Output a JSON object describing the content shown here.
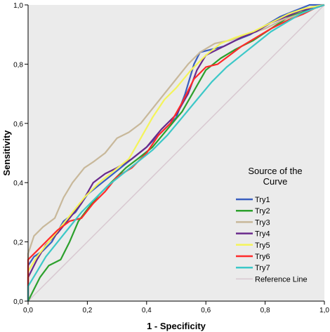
{
  "chart_data": {
    "type": "line",
    "title": "",
    "xlabel": "1 - Specificity",
    "ylabel": "Sensitivity",
    "xlim": [
      0,
      1
    ],
    "ylim": [
      0,
      1
    ],
    "x_ticks": [
      "0,0",
      "0,2",
      "0,4",
      "0,6",
      "0,8",
      "1,0"
    ],
    "y_ticks": [
      "0,0",
      "0,2",
      "0,4",
      "0,6",
      "0,8",
      "1,0"
    ],
    "grid": false,
    "background": "#ebebeb",
    "legend": {
      "title": "Source of the Curve",
      "title_lines": [
        "Source of the",
        "Curve"
      ],
      "placement": "bottom-right"
    },
    "series": [
      {
        "name": "Try1",
        "color": "#3a5fbf",
        "points": [
          [
            0,
            0
          ],
          [
            0,
            0.12
          ],
          [
            0.02,
            0.15
          ],
          [
            0.05,
            0.17
          ],
          [
            0.08,
            0.2
          ],
          [
            0.12,
            0.27
          ],
          [
            0.16,
            0.3
          ],
          [
            0.2,
            0.36
          ],
          [
            0.25,
            0.4
          ],
          [
            0.3,
            0.44
          ],
          [
            0.35,
            0.48
          ],
          [
            0.4,
            0.52
          ],
          [
            0.45,
            0.57
          ],
          [
            0.5,
            0.62
          ],
          [
            0.53,
            0.7
          ],
          [
            0.56,
            0.8
          ],
          [
            0.58,
            0.84
          ],
          [
            0.62,
            0.85
          ],
          [
            0.66,
            0.86
          ],
          [
            0.7,
            0.88
          ],
          [
            0.75,
            0.9
          ],
          [
            0.8,
            0.93
          ],
          [
            0.85,
            0.96
          ],
          [
            0.9,
            0.98
          ],
          [
            0.95,
            1
          ],
          [
            1,
            1
          ]
        ]
      },
      {
        "name": "Try2",
        "color": "#2ca02c",
        "points": [
          [
            0,
            0
          ],
          [
            0.02,
            0.04
          ],
          [
            0.04,
            0.08
          ],
          [
            0.07,
            0.12
          ],
          [
            0.11,
            0.14
          ],
          [
            0.14,
            0.2
          ],
          [
            0.17,
            0.27
          ],
          [
            0.2,
            0.31
          ],
          [
            0.24,
            0.36
          ],
          [
            0.28,
            0.4
          ],
          [
            0.33,
            0.45
          ],
          [
            0.37,
            0.48
          ],
          [
            0.42,
            0.52
          ],
          [
            0.47,
            0.58
          ],
          [
            0.52,
            0.64
          ],
          [
            0.56,
            0.71
          ],
          [
            0.6,
            0.78
          ],
          [
            0.65,
            0.82
          ],
          [
            0.7,
            0.85
          ],
          [
            0.76,
            0.88
          ],
          [
            0.82,
            0.92
          ],
          [
            0.88,
            0.96
          ],
          [
            0.94,
            0.98
          ],
          [
            1,
            1
          ]
        ]
      },
      {
        "name": "Try3",
        "color": "#c8b89a",
        "points": [
          [
            0,
            0
          ],
          [
            0,
            0.16
          ],
          [
            0.02,
            0.22
          ],
          [
            0.05,
            0.25
          ],
          [
            0.09,
            0.28
          ],
          [
            0.12,
            0.35
          ],
          [
            0.15,
            0.4
          ],
          [
            0.19,
            0.45
          ],
          [
            0.22,
            0.47
          ],
          [
            0.26,
            0.5
          ],
          [
            0.3,
            0.55
          ],
          [
            0.34,
            0.57
          ],
          [
            0.38,
            0.6
          ],
          [
            0.42,
            0.65
          ],
          [
            0.46,
            0.7
          ],
          [
            0.5,
            0.75
          ],
          [
            0.54,
            0.8
          ],
          [
            0.58,
            0.84
          ],
          [
            0.63,
            0.87
          ],
          [
            0.68,
            0.88
          ],
          [
            0.74,
            0.9
          ],
          [
            0.8,
            0.92
          ],
          [
            0.86,
            0.95
          ],
          [
            0.92,
            0.97
          ],
          [
            0.97,
            0.99
          ],
          [
            1,
            1
          ]
        ]
      },
      {
        "name": "Try4",
        "color": "#6a2a8c",
        "points": [
          [
            0,
            0
          ],
          [
            0,
            0.08
          ],
          [
            0.03,
            0.14
          ],
          [
            0.06,
            0.19
          ],
          [
            0.1,
            0.23
          ],
          [
            0.14,
            0.28
          ],
          [
            0.18,
            0.33
          ],
          [
            0.22,
            0.4
          ],
          [
            0.26,
            0.43
          ],
          [
            0.3,
            0.45
          ],
          [
            0.35,
            0.48
          ],
          [
            0.4,
            0.52
          ],
          [
            0.45,
            0.58
          ],
          [
            0.5,
            0.63
          ],
          [
            0.54,
            0.7
          ],
          [
            0.57,
            0.78
          ],
          [
            0.6,
            0.83
          ],
          [
            0.64,
            0.85
          ],
          [
            0.68,
            0.87
          ],
          [
            0.72,
            0.89
          ],
          [
            0.77,
            0.91
          ],
          [
            0.82,
            0.94
          ],
          [
            0.87,
            0.96
          ],
          [
            0.92,
            0.98
          ],
          [
            0.97,
            0.99
          ],
          [
            1,
            1
          ]
        ]
      },
      {
        "name": "Try5",
        "color": "#f4f45a",
        "points": [
          [
            0,
            0
          ],
          [
            0,
            0.1
          ],
          [
            0.03,
            0.15
          ],
          [
            0.07,
            0.2
          ],
          [
            0.11,
            0.25
          ],
          [
            0.15,
            0.3
          ],
          [
            0.19,
            0.35
          ],
          [
            0.24,
            0.4
          ],
          [
            0.29,
            0.44
          ],
          [
            0.34,
            0.48
          ],
          [
            0.38,
            0.55
          ],
          [
            0.42,
            0.62
          ],
          [
            0.46,
            0.68
          ],
          [
            0.5,
            0.72
          ],
          [
            0.55,
            0.78
          ],
          [
            0.6,
            0.83
          ],
          [
            0.65,
            0.87
          ],
          [
            0.7,
            0.89
          ],
          [
            0.76,
            0.91
          ],
          [
            0.82,
            0.94
          ],
          [
            0.88,
            0.97
          ],
          [
            0.94,
            0.99
          ],
          [
            1,
            1
          ]
        ]
      },
      {
        "name": "Try6",
        "color": "#ff2a2a",
        "points": [
          [
            0,
            0
          ],
          [
            0,
            0.14
          ],
          [
            0.03,
            0.17
          ],
          [
            0.06,
            0.2
          ],
          [
            0.1,
            0.24
          ],
          [
            0.14,
            0.27
          ],
          [
            0.18,
            0.28
          ],
          [
            0.22,
            0.33
          ],
          [
            0.26,
            0.37
          ],
          [
            0.3,
            0.42
          ],
          [
            0.35,
            0.45
          ],
          [
            0.4,
            0.5
          ],
          [
            0.44,
            0.56
          ],
          [
            0.48,
            0.6
          ],
          [
            0.52,
            0.67
          ],
          [
            0.56,
            0.75
          ],
          [
            0.6,
            0.79
          ],
          [
            0.64,
            0.8
          ],
          [
            0.68,
            0.83
          ],
          [
            0.72,
            0.86
          ],
          [
            0.77,
            0.89
          ],
          [
            0.82,
            0.92
          ],
          [
            0.88,
            0.95
          ],
          [
            0.93,
            0.97
          ],
          [
            0.97,
            0.99
          ],
          [
            1,
            1
          ]
        ]
      },
      {
        "name": "Try7",
        "color": "#3cc8c8",
        "points": [
          [
            0,
            0
          ],
          [
            0,
            0.05
          ],
          [
            0.03,
            0.1
          ],
          [
            0.06,
            0.15
          ],
          [
            0.1,
            0.2
          ],
          [
            0.14,
            0.25
          ],
          [
            0.18,
            0.3
          ],
          [
            0.22,
            0.34
          ],
          [
            0.27,
            0.39
          ],
          [
            0.32,
            0.43
          ],
          [
            0.37,
            0.47
          ],
          [
            0.42,
            0.51
          ],
          [
            0.47,
            0.56
          ],
          [
            0.52,
            0.62
          ],
          [
            0.57,
            0.68
          ],
          [
            0.62,
            0.74
          ],
          [
            0.67,
            0.79
          ],
          [
            0.72,
            0.83
          ],
          [
            0.77,
            0.87
          ],
          [
            0.82,
            0.91
          ],
          [
            0.87,
            0.94
          ],
          [
            0.92,
            0.97
          ],
          [
            0.97,
            0.99
          ],
          [
            1,
            1
          ]
        ]
      },
      {
        "name": "Reference Line",
        "color": "#d8c8d0",
        "points": [
          [
            0,
            0
          ],
          [
            1,
            1
          ]
        ]
      }
    ]
  }
}
